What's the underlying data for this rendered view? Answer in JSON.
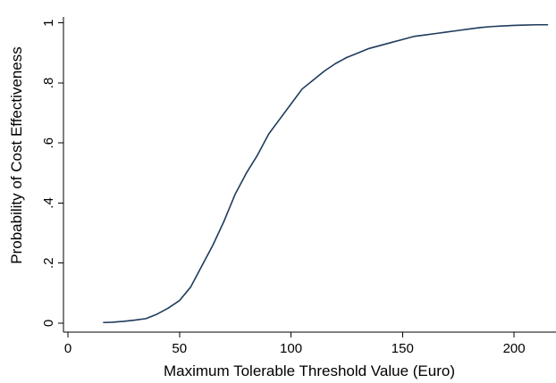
{
  "chart_data": {
    "type": "line",
    "title": "",
    "xlabel": "Maximum Tolerable Threshold Value (Euro)",
    "ylabel": "Probability of Cost Effectiveness",
    "xlim": [
      -2,
      218
    ],
    "ylim": [
      -0.03,
      1.02
    ],
    "x_ticks": [
      0,
      50,
      100,
      150,
      200
    ],
    "x_tick_labels": [
      "0",
      "50",
      "100",
      "150",
      "200"
    ],
    "y_ticks": [
      0,
      0.2,
      0.4,
      0.6,
      0.8,
      1
    ],
    "y_tick_labels": [
      "0",
      ".2",
      ".4",
      ".6",
      ".8",
      "1"
    ],
    "grid": false,
    "legend": "none",
    "line_color": "#1f3b5c",
    "series": [
      {
        "x": [
          16,
          20,
          25,
          30,
          35,
          40,
          45,
          50,
          55,
          60,
          65,
          70,
          75,
          80,
          85,
          90,
          95,
          100,
          105,
          110,
          115,
          120,
          125,
          130,
          135,
          140,
          145,
          150,
          155,
          160,
          165,
          170,
          175,
          180,
          185,
          190,
          195,
          200,
          205,
          210,
          215
        ],
        "y": [
          0.002,
          0.003,
          0.006,
          0.01,
          0.015,
          0.03,
          0.05,
          0.075,
          0.12,
          0.19,
          0.26,
          0.34,
          0.43,
          0.5,
          0.56,
          0.63,
          0.68,
          0.73,
          0.78,
          0.81,
          0.84,
          0.865,
          0.885,
          0.9,
          0.915,
          0.925,
          0.935,
          0.945,
          0.955,
          0.96,
          0.965,
          0.97,
          0.975,
          0.98,
          0.985,
          0.988,
          0.99,
          0.992,
          0.993,
          0.994,
          0.994
        ]
      }
    ]
  }
}
